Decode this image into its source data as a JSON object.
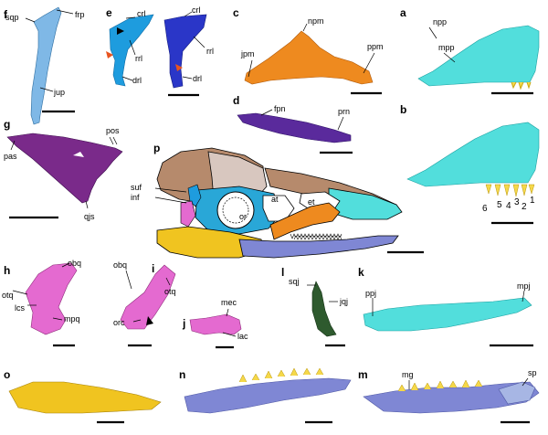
{
  "colors": {
    "squamosal": "#7fb8e6",
    "lacrimal_a": "#1e9cde",
    "lacrimal_b": "#2a36c8",
    "pterygoid": "#ee8a1f",
    "premaxilla": "#52dedc",
    "palatine": "#5a2a9c",
    "parasphenoid": "#7a2a8a",
    "quadrate": "#e46ad0",
    "quadratojugal": "#2e5a2e",
    "dentary": "#7f87d4",
    "splenial": "#a7b6e4",
    "articular": "#f0c420",
    "skull_frontal": "#b68a6c",
    "skull_parietal": "#d8c7bf",
    "skull_orbit": "#29a7d7",
    "skull_neg": "#ffffff",
    "tooth": "#f5d84a",
    "outline": "#000000"
  },
  "panels": {
    "a": "a",
    "b": "b",
    "c": "c",
    "d": "d",
    "e": "e",
    "f": "f",
    "g": "g",
    "h": "h",
    "i": "i",
    "j": "j",
    "k": "k",
    "l": "l",
    "m": "m",
    "n": "n",
    "o": "o",
    "p": "p"
  },
  "labels": {
    "f": {
      "sqp": "sqp",
      "frp": "frp",
      "jup": "jup"
    },
    "e": {
      "crl_1": "crl",
      "rrl_1": "rrl",
      "drl_1": "drl",
      "crl_2": "crl",
      "rrl_2": "rrl",
      "drl_2": "drl"
    },
    "c": {
      "npm": "npm",
      "jpm": "jpm",
      "ppm": "ppm"
    },
    "a": {
      "npp": "npp",
      "mpp": "mpp"
    },
    "d": {
      "fpn": "fpn",
      "prn": "prn"
    },
    "g": {
      "pos": "pos",
      "pas": "pas",
      "qjs": "qjs"
    },
    "p": {
      "suf": "suf",
      "inf": "inf",
      "or": "or",
      "at": "at",
      "et": "et"
    },
    "b": {
      "t6": "6",
      "t5": "5",
      "t4": "4",
      "t3": "3",
      "t2": "2",
      "t1": "1"
    },
    "h": {
      "otq": "otq",
      "obq": "obq",
      "lcs": "lcs",
      "mpq": "mpq"
    },
    "i": {
      "obq": "obq",
      "otq": "otq",
      "orc": "orc"
    },
    "j": {
      "mec": "mec",
      "lac": "lac"
    },
    "l": {
      "sqj": "sqj",
      "jqj": "jqj"
    },
    "k": {
      "ppj": "ppj",
      "mpj": "mpj"
    },
    "m": {
      "mg": "mg",
      "sp": "sp"
    }
  }
}
